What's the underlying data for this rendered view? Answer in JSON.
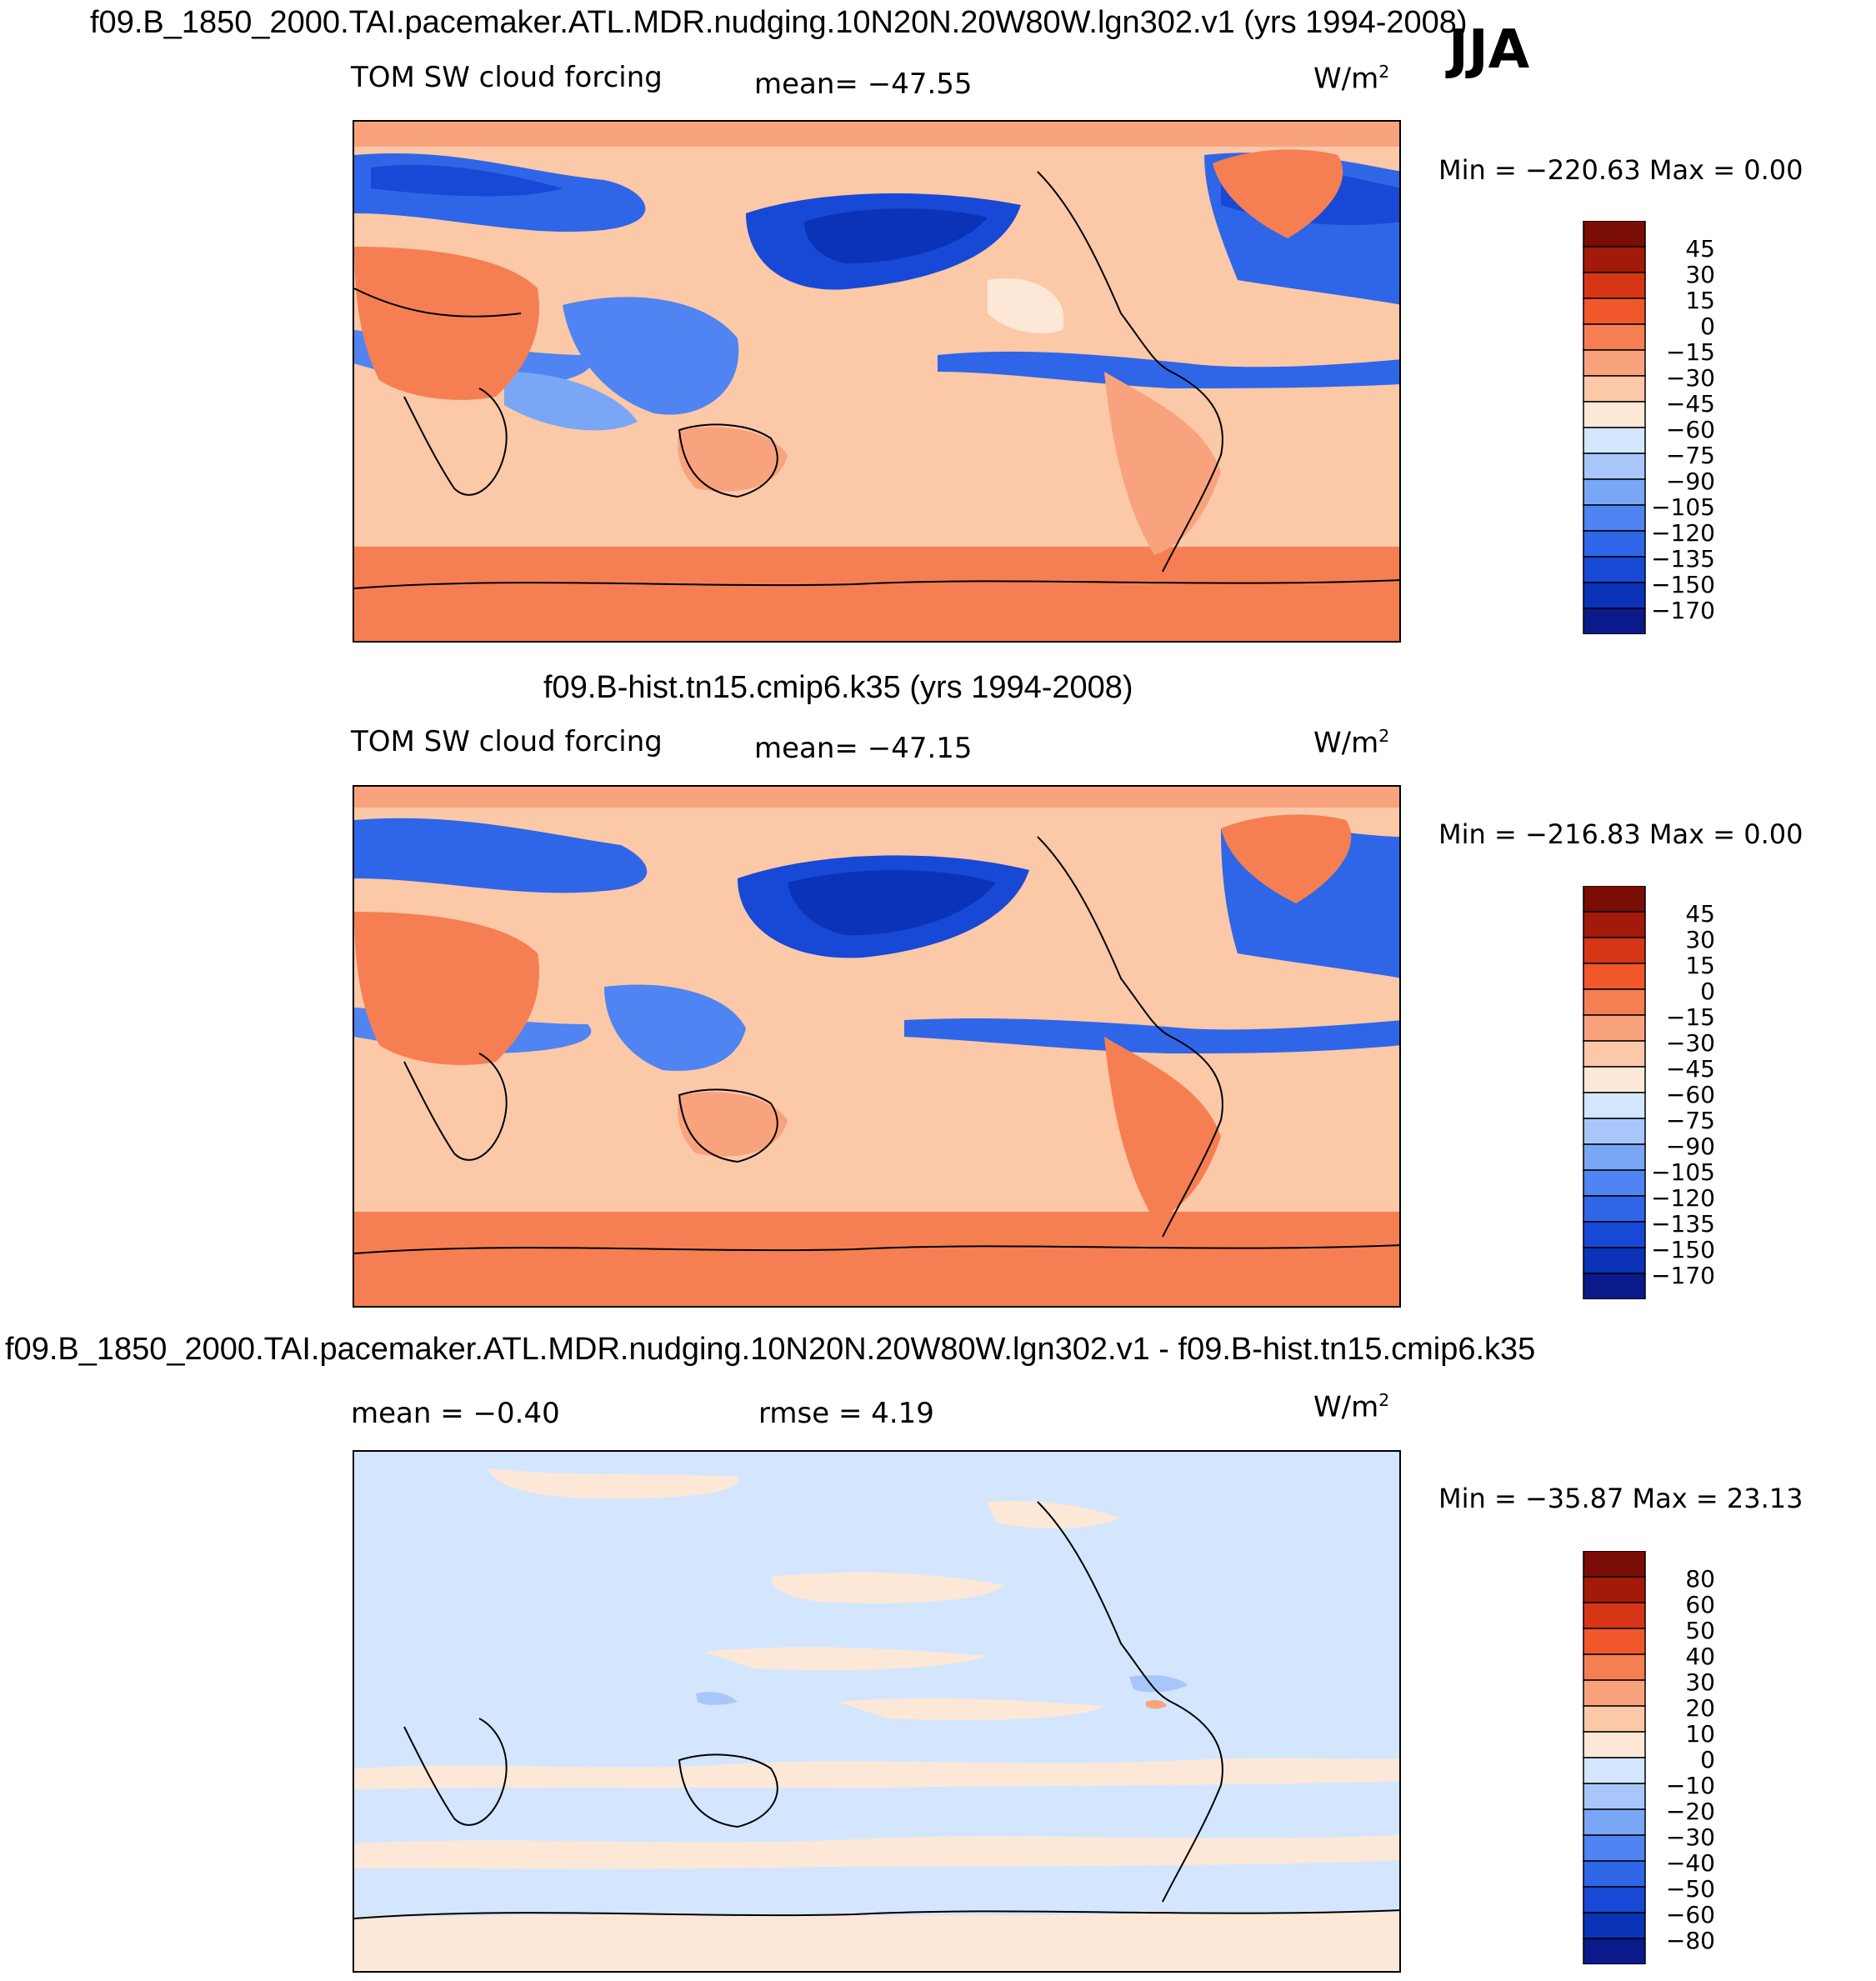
{
  "season": "JJA",
  "panels": [
    {
      "title": "f09.B_1850_2000.TAI.pacemaker.ATL.MDR.nudging.10N20N.20W80W.lgn302.v1 (yrs 1994-2008)",
      "variable": "TOM SW cloud forcing",
      "stat_label": "mean= −47.55",
      "units": "W/m",
      "units_sup": "2",
      "minmax": "Min = −220.63 Max =    0.00",
      "palette": [
        "#0b1a8a",
        "#0a33b8",
        "#1849d6",
        "#2f66e8",
        "#4f84f2",
        "#7aa6f6",
        "#a8c6fa",
        "#d4e6fd",
        "#fde8d8",
        "#fbc8a8",
        "#f8a37e",
        "#f57f52",
        "#f0582c",
        "#d63516",
        "#a41a0a",
        "#7a0d05"
      ],
      "levels": [
        "45",
        "30",
        "15",
        "0",
        "−15",
        "−30",
        "−45",
        "−60",
        "−75",
        "−90",
        "−105",
        "−120",
        "−135",
        "−150",
        "−170"
      ]
    },
    {
      "title": "f09.B-hist.tn15.cmip6.k35 (yrs 1994-2008)",
      "variable": "TOM SW cloud forcing",
      "stat_label": "mean= −47.15",
      "units": "W/m",
      "units_sup": "2",
      "minmax": "Min = −216.83 Max =    0.00",
      "palette": [
        "#0b1a8a",
        "#0a33b8",
        "#1849d6",
        "#2f66e8",
        "#4f84f2",
        "#7aa6f6",
        "#a8c6fa",
        "#d4e6fd",
        "#fde8d8",
        "#fbc8a8",
        "#f8a37e",
        "#f57f52",
        "#f0582c",
        "#d63516",
        "#a41a0a",
        "#7a0d05"
      ],
      "levels": [
        "45",
        "30",
        "15",
        "0",
        "−15",
        "−30",
        "−45",
        "−60",
        "−75",
        "−90",
        "−105",
        "−120",
        "−135",
        "−150",
        "−170"
      ]
    },
    {
      "title": "f09.B_1850_2000.TAI.pacemaker.ATL.MDR.nudging.10N20N.20W80W.lgn302.v1 - f09.B-hist.tn15.cmip6.k35",
      "mean_label": "mean =   −0.40",
      "rmse_label": "rmse =    4.19",
      "units": "W/m",
      "units_sup": "2",
      "minmax": "Min = −35.87 Max =  23.13",
      "palette": [
        "#0b1a8a",
        "#0a33b8",
        "#1849d6",
        "#2f66e8",
        "#4f84f2",
        "#7aa6f6",
        "#a8c6fa",
        "#d4e6fd",
        "#fde8d8",
        "#fbc8a8",
        "#f8a37e",
        "#f57f52",
        "#f0582c",
        "#d63516",
        "#a41a0a",
        "#7a0d05"
      ],
      "levels": [
        "80",
        "60",
        "50",
        "40",
        "30",
        "20",
        "10",
        "0",
        "−10",
        "−20",
        "−30",
        "−40",
        "−50",
        "−60",
        "−80"
      ]
    }
  ],
  "chart_data": [
    {
      "type": "heatmap",
      "title": "f09.B_1850_2000.TAI.pacemaker.ATL.MDR.nudging.10N20N.20W80W.lgn302.v1 (yrs 1994-2008)",
      "variable": "TOM SW cloud forcing",
      "units": "W/m2",
      "season": "JJA",
      "mean": -47.55,
      "min": -220.63,
      "max": 0.0,
      "contour_levels": [
        45,
        30,
        15,
        0,
        -15,
        -30,
        -45,
        -60,
        -75,
        -90,
        -105,
        -120,
        -135,
        -150,
        -170
      ]
    },
    {
      "type": "heatmap",
      "title": "f09.B-hist.tn15.cmip6.k35 (yrs 1994-2008)",
      "variable": "TOM SW cloud forcing",
      "units": "W/m2",
      "mean": -47.15,
      "min": -216.83,
      "max": 0.0,
      "contour_levels": [
        45,
        30,
        15,
        0,
        -15,
        -30,
        -45,
        -60,
        -75,
        -90,
        -105,
        -120,
        -135,
        -150,
        -170
      ]
    },
    {
      "type": "heatmap",
      "title": "f09.B_1850_2000.TAI.pacemaker.ATL.MDR.nudging.10N20N.20W80W.lgn302.v1 - f09.B-hist.tn15.cmip6.k35",
      "units": "W/m2",
      "mean": -0.4,
      "rmse": 4.19,
      "min": -35.87,
      "max": 23.13,
      "contour_levels": [
        80,
        60,
        50,
        40,
        30,
        20,
        10,
        0,
        -10,
        -20,
        -30,
        -40,
        -50,
        -60,
        -80
      ]
    }
  ]
}
